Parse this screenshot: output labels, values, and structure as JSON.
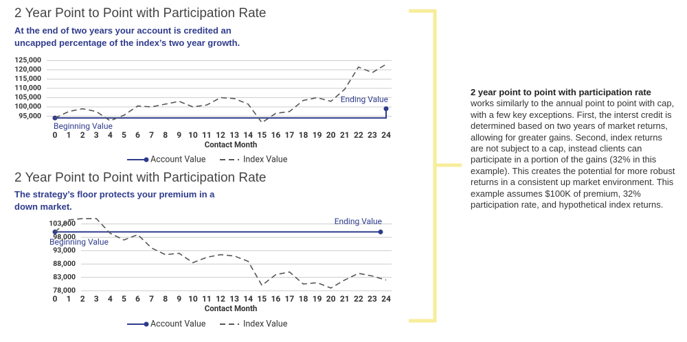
{
  "chart_data": [
    {
      "type": "line",
      "title": "2 Year Point to Point with Participation Rate",
      "subtitle": "At the end of two years your account is credited an uncapped percentage of the index’s two year growth.",
      "x_label": "Contact Month",
      "x": [
        0,
        1,
        2,
        3,
        4,
        5,
        6,
        7,
        8,
        9,
        10,
        11,
        12,
        13,
        14,
        15,
        16,
        17,
        18,
        19,
        20,
        21,
        22,
        23,
        24
      ],
      "xlim": [
        0,
        24
      ],
      "xticks": [
        0,
        1,
        2,
        3,
        4,
        5,
        6,
        7,
        8,
        9,
        10,
        11,
        12,
        13,
        14,
        15,
        16,
        17,
        18,
        19,
        20,
        21,
        22,
        23,
        24
      ],
      "ylim": [
        90000,
        125500
      ],
      "yticks": [
        {
          "value": 95000,
          "label": "95,000"
        },
        {
          "value": 100000,
          "label": "100,000"
        },
        {
          "value": 105000,
          "label": "105,000"
        },
        {
          "value": 110000,
          "label": "110,000"
        },
        {
          "value": 115000,
          "label": "115,000"
        },
        {
          "value": 120000,
          "label": "120,000"
        },
        {
          "value": 125000,
          "label": "125,000"
        }
      ],
      "grid": true,
      "annotations": [
        "Beginning Value",
        "Ending Value"
      ],
      "series": [
        {
          "name": "Account Value",
          "color": "#2e3b8c",
          "x": [
            0,
            24,
            24
          ],
          "values": [
            94000,
            94000,
            99000
          ]
        },
        {
          "name": "Index Value",
          "color": "#555555",
          "dashed": true,
          "values": [
            94000,
            97500,
            99000,
            97500,
            92500,
            95500,
            100500,
            100000,
            101500,
            103000,
            100000,
            101000,
            105000,
            104500,
            101500,
            91500,
            96500,
            97500,
            103500,
            105000,
            103000,
            109500,
            121500,
            118500,
            123000
          ]
        }
      ]
    },
    {
      "type": "line",
      "title": "2 Year Point to Point with Participation Rate",
      "subtitle": "The strategy’s floor protects your premium in a down market.",
      "x_label": "Contact Month",
      "x": [
        0,
        1,
        2,
        3,
        4,
        5,
        6,
        7,
        8,
        9,
        10,
        11,
        12,
        13,
        14,
        15,
        16,
        17,
        18,
        19,
        20,
        21,
        22,
        23,
        24
      ],
      "xlim": [
        0,
        24
      ],
      "xticks": [
        0,
        1,
        2,
        3,
        4,
        5,
        6,
        7,
        8,
        9,
        10,
        11,
        12,
        13,
        14,
        15,
        16,
        17,
        18,
        19,
        20,
        21,
        22,
        23,
        24
      ],
      "ylim": [
        76500,
        105500
      ],
      "yticks": [
        {
          "value": 78000,
          "label": "78,000"
        },
        {
          "value": 83000,
          "label": "83,000"
        },
        {
          "value": 88000,
          "label": "88,000"
        },
        {
          "value": 93000,
          "label": "93,000"
        },
        {
          "value": 98000,
          "label": "98,000"
        },
        {
          "value": 103000,
          "label": "103,000"
        }
      ],
      "grid": true,
      "annotations": [
        "Beginning Value",
        "Ending Value"
      ],
      "series": [
        {
          "name": "Account Value",
          "color": "#2e3b8c",
          "x": [
            0,
            23.6
          ],
          "values": [
            100000,
            100000
          ]
        },
        {
          "name": "Index Value",
          "color": "#555555",
          "dashed": true,
          "values": [
            100000,
            104500,
            105000,
            105000,
            99500,
            97000,
            99000,
            94000,
            91500,
            92000,
            88500,
            90500,
            91500,
            91000,
            89000,
            80000,
            84000,
            85000,
            80500,
            81000,
            79000,
            82000,
            84500,
            83500,
            82000
          ]
        }
      ]
    }
  ],
  "sidebar": {
    "heading": "2 year point to point with participation rate",
    "body": "works similarly to the annual point to point with cap, with a few key exceptions. First, the interst credit is determined based on two years of market returns, allowing for greater gains. Second, index returns are  not subject to a cap, instead clients can participate in a portion of the gains (32% in this example). This creates the potential for more robust returns in a consistent up market environment. This example assumes $100K of premium, 32% participation rate, and hypothetical index returns."
  }
}
